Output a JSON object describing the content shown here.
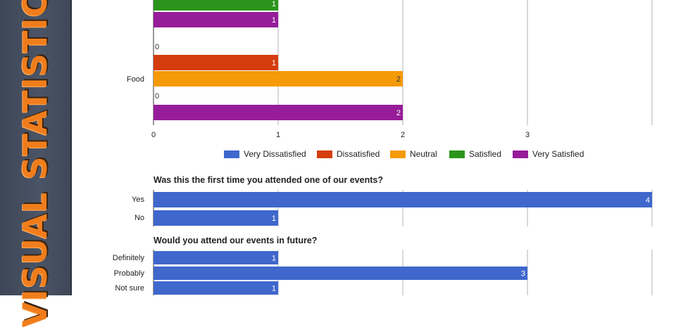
{
  "sidebar": {
    "title": "VISUAL STATISTICS",
    "title_color": "#f07d1c",
    "bg_color": "#465062"
  },
  "legend": [
    {
      "name": "Very Dissatisfied",
      "color": "#3f67cc"
    },
    {
      "name": "Dissatisfied",
      "color": "#d43d0e"
    },
    {
      "name": "Neutral",
      "color": "#f59a08"
    },
    {
      "name": "Satisfied",
      "color": "#2b951b"
    },
    {
      "name": "Very Satisfied",
      "color": "#961c9a"
    }
  ],
  "questions": {
    "q2": "Was this the first time you attended one of our events?",
    "q3": "Would you attend our events in future?"
  },
  "chart_data": [
    {
      "type": "bar",
      "orientation": "horizontal",
      "categories": [
        "",
        "Food"
      ],
      "series": [
        {
          "name": "Very Dissatisfied",
          "values": [
            null,
            0
          ]
        },
        {
          "name": "Dissatisfied",
          "values": [
            null,
            1
          ]
        },
        {
          "name": "Neutral",
          "values": [
            null,
            2
          ]
        },
        {
          "name": "Satisfied",
          "values": [
            1,
            0
          ]
        },
        {
          "name": "Very Satisfied",
          "values": [
            1,
            2
          ]
        }
      ],
      "xticks": [
        "0",
        "1",
        "2",
        "3"
      ],
      "xlim": [
        0,
        4
      ],
      "legend_position": "bottom",
      "grid": true
    },
    {
      "type": "bar",
      "orientation": "horizontal",
      "title": "Was this the first time you attended one of our events?",
      "categories": [
        "Yes",
        "No"
      ],
      "values": [
        4,
        1
      ],
      "color": "#3f67cc",
      "xlim": [
        0,
        4
      ],
      "grid": true
    },
    {
      "type": "bar",
      "orientation": "horizontal",
      "title": "Would you attend our events in future?",
      "categories": [
        "Definitely",
        "Probably",
        "Not sure"
      ],
      "values": [
        1,
        3,
        1
      ],
      "color": "#3f67cc",
      "xlim": [
        0,
        4
      ],
      "grid": true
    }
  ]
}
